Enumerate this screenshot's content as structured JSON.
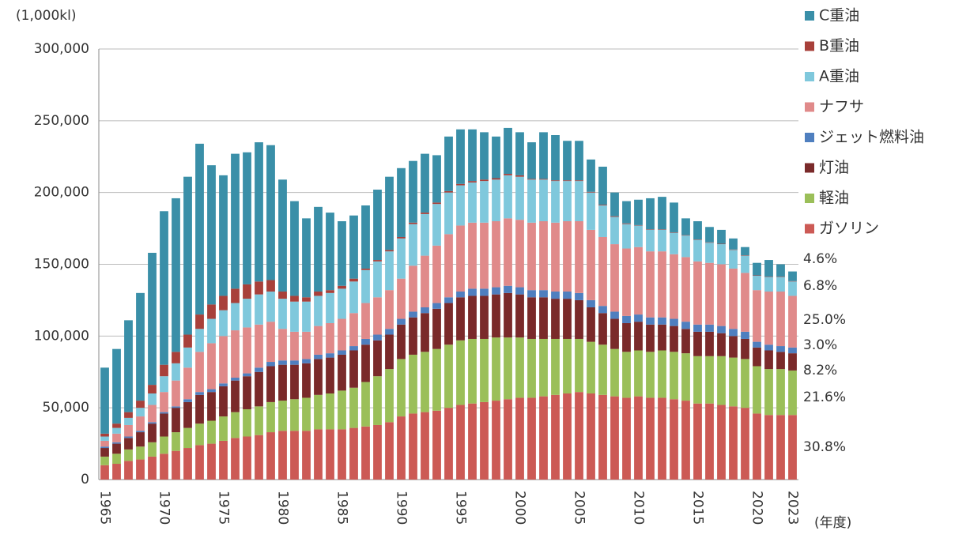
{
  "chart_data": {
    "type": "stacked_bar",
    "y_unit_label": "(1,000kl)",
    "x_axis_label": "(年度)",
    "categories": [
      "1965",
      null,
      null,
      null,
      null,
      "1970",
      null,
      null,
      null,
      null,
      "1975",
      null,
      null,
      null,
      null,
      "1980",
      null,
      null,
      null,
      null,
      "1985",
      null,
      null,
      null,
      null,
      "1990",
      null,
      null,
      null,
      null,
      "1995",
      null,
      null,
      null,
      null,
      "2000",
      null,
      null,
      null,
      null,
      "2005",
      null,
      null,
      null,
      null,
      "2010",
      null,
      null,
      null,
      null,
      "2015",
      null,
      null,
      null,
      null,
      "2020",
      null,
      null,
      "2023"
    ],
    "ylim": [
      0,
      300000
    ],
    "yticks": [
      0,
      {
        "value": 50000,
        "label": "50,000"
      },
      {
        "value": 100000,
        "label": "100,000"
      },
      {
        "value": 150000,
        "label": "150,000"
      },
      {
        "value": 200000,
        "label": "200,000"
      },
      {
        "value": 250000,
        "label": "250,000"
      },
      {
        "value": 300000,
        "label": "300,000"
      }
    ],
    "grid": true,
    "legend": "right",
    "series": [
      {
        "name": "ガソリン",
        "color": "#cc5a55",
        "values": [
          10000,
          11000,
          13000,
          14000,
          16000,
          18000,
          20000,
          22000,
          24000,
          25000,
          27000,
          29000,
          30000,
          31000,
          33000,
          34000,
          34000,
          34000,
          35000,
          35000,
          35000,
          36000,
          37000,
          38000,
          40000,
          44000,
          46000,
          47000,
          48000,
          50000,
          52000,
          53000,
          54000,
          55000,
          56000,
          57000,
          57000,
          58000,
          59000,
          60000,
          61000,
          60000,
          59000,
          58000,
          57000,
          58000,
          57000,
          57000,
          56000,
          55000,
          53000,
          53000,
          52000,
          51000,
          50000,
          46000,
          45000,
          45000,
          45000
        ]
      },
      {
        "name": "軽油",
        "color": "#9bbf59",
        "values": [
          6000,
          7000,
          8000,
          9000,
          10000,
          12000,
          13000,
          14000,
          15000,
          16000,
          17000,
          18000,
          19000,
          20000,
          21000,
          21000,
          22000,
          23000,
          24000,
          25000,
          27000,
          28000,
          31000,
          34000,
          37000,
          40000,
          41000,
          42000,
          43000,
          44000,
          45000,
          45000,
          44000,
          44000,
          43000,
          42000,
          41000,
          40000,
          39000,
          38000,
          37000,
          36000,
          35000,
          33000,
          32000,
          32000,
          32000,
          33000,
          33000,
          33000,
          33000,
          33000,
          34000,
          34000,
          34000,
          33000,
          32000,
          32000,
          31000
        ]
      },
      {
        "name": "灯油",
        "color": "#7a2a2a",
        "values": [
          6000,
          7000,
          8000,
          10000,
          13000,
          16000,
          17000,
          18000,
          20000,
          20000,
          21000,
          22000,
          23000,
          24000,
          25000,
          25000,
          24000,
          24000,
          25000,
          25000,
          25000,
          26000,
          26000,
          25000,
          24000,
          24000,
          26000,
          27000,
          28000,
          29000,
          30000,
          30000,
          30000,
          30000,
          31000,
          30000,
          29000,
          29000,
          28000,
          28000,
          27000,
          24000,
          22000,
          21000,
          20000,
          20000,
          19000,
          18000,
          18000,
          17000,
          17000,
          17000,
          16000,
          15000,
          14000,
          13000,
          13000,
          12000,
          12000
        ]
      },
      {
        "name": "ジェット燃料油",
        "color": "#4f7fbf",
        "values": [
          1000,
          1000,
          1000,
          1000,
          1000,
          1000,
          1000,
          2000,
          2000,
          2000,
          2000,
          2000,
          2000,
          3000,
          3000,
          3000,
          3000,
          3000,
          3000,
          3000,
          3000,
          3000,
          4000,
          4000,
          4000,
          4000,
          4000,
          4000,
          4000,
          4000,
          4000,
          5000,
          5000,
          5000,
          5000,
          5000,
          5000,
          5000,
          5000,
          5000,
          5000,
          5000,
          5000,
          5000,
          5000,
          5000,
          5000,
          5000,
          5000,
          5000,
          5000,
          5000,
          5000,
          5000,
          5000,
          4000,
          4000,
          4000,
          4000
        ]
      },
      {
        "name": "ナフサ",
        "color": "#e08a8a",
        "values": [
          4000,
          6000,
          8000,
          10000,
          12000,
          14000,
          18000,
          22000,
          28000,
          32000,
          33000,
          33000,
          32000,
          30000,
          28000,
          22000,
          20000,
          19000,
          20000,
          21000,
          22000,
          23000,
          25000,
          26000,
          27000,
          28000,
          32000,
          36000,
          40000,
          44000,
          46000,
          46000,
          46000,
          46000,
          47000,
          47000,
          47000,
          48000,
          48000,
          49000,
          50000,
          49000,
          48000,
          47000,
          47000,
          47000,
          46000,
          46000,
          45000,
          45000,
          44000,
          43000,
          43000,
          42000,
          41000,
          36000,
          37000,
          38000,
          36000
        ]
      },
      {
        "name": "A重油",
        "color": "#7fc8dc",
        "values": [
          3000,
          4000,
          5000,
          6000,
          8000,
          11000,
          12000,
          14000,
          16000,
          17000,
          18000,
          19000,
          20000,
          21000,
          21000,
          21000,
          21000,
          21000,
          21000,
          21000,
          21000,
          22000,
          23000,
          25000,
          27000,
          28000,
          29000,
          29000,
          29000,
          29000,
          28000,
          28000,
          29000,
          29000,
          30000,
          30000,
          30000,
          29000,
          29000,
          28000,
          28000,
          26000,
          22000,
          19000,
          17000,
          15000,
          15000,
          15000,
          15000,
          15000,
          15000,
          14000,
          14000,
          13000,
          12000,
          10000,
          10000,
          10000,
          10000
        ]
      },
      {
        "name": "B重油",
        "color": "#a8403a",
        "values": [
          2000,
          3000,
          4000,
          5000,
          6000,
          8000,
          8000,
          9000,
          10000,
          10000,
          10000,
          10000,
          10000,
          9000,
          8000,
          5000,
          4000,
          3000,
          3000,
          2000,
          2000,
          2000,
          1000,
          1000,
          1000,
          1000,
          1000,
          1000,
          1000,
          1000,
          1000,
          1000,
          1000,
          1000,
          1000,
          1000,
          500,
          500,
          500,
          500,
          500,
          500,
          500,
          500,
          500,
          300,
          300,
          300,
          300,
          300,
          300,
          300,
          300,
          300,
          300,
          300,
          300,
          300,
          300
        ]
      },
      {
        "name": "C重油",
        "color": "#3a8fa8",
        "values": [
          46000,
          52000,
          64000,
          75000,
          92000,
          107000,
          107000,
          110000,
          119000,
          97000,
          84000,
          94000,
          92000,
          97000,
          94000,
          78000,
          66000,
          55000,
          59000,
          54000,
          45000,
          44000,
          44000,
          49000,
          51000,
          48000,
          43000,
          41000,
          33000,
          38000,
          38000,
          36000,
          33000,
          29000,
          32000,
          30000,
          25500,
          32500,
          31500,
          27500,
          27500,
          22500,
          26500,
          16500,
          15500,
          17700,
          21700,
          22700,
          20700,
          11700,
          12700,
          10700,
          9700,
          7700,
          5700,
          8700,
          11700,
          8700,
          6700
        ]
      }
    ],
    "annotations": [
      "4.6%",
      "6.8%",
      "25.0%",
      "3.0%",
      "8.2%",
      "21.6%",
      "30.8%"
    ]
  }
}
